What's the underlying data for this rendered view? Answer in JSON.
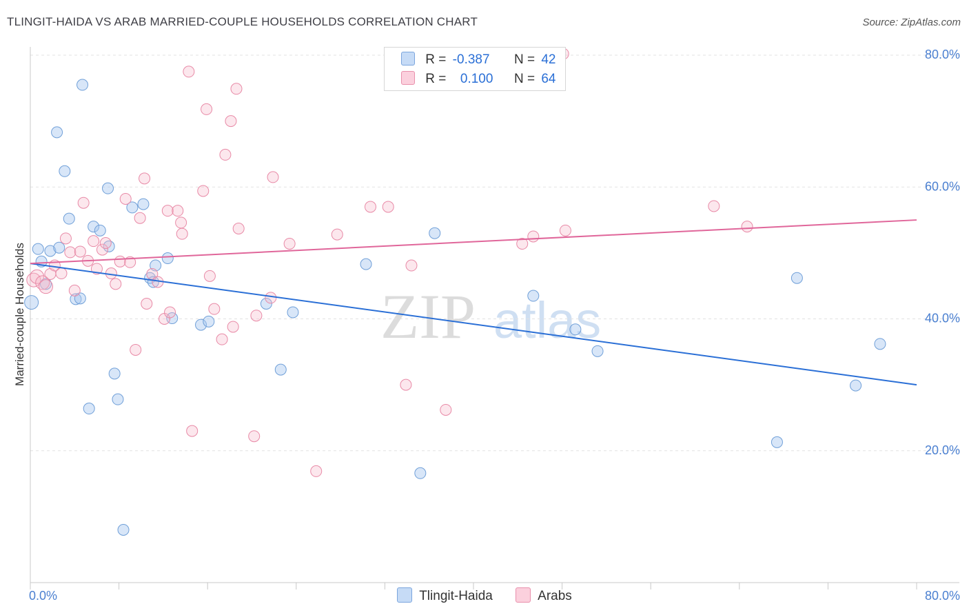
{
  "title": "TLINGIT-HAIDA VS ARAB MARRIED-COUPLE HOUSEHOLDS CORRELATION CHART",
  "source": "Source: ZipAtlas.com",
  "watermark": {
    "zip": "ZIP",
    "atlas": "atlas"
  },
  "legend": {
    "r_label": "R =",
    "n_label": "N =",
    "series": [
      {
        "name": "Tlingit-Haida",
        "r": "-0.387",
        "n": "42",
        "color": "#a8c8f0",
        "edge": "#6f9fd8"
      },
      {
        "name": "Arabs",
        "r": "0.100",
        "n": "64",
        "color": "#f6b9cc",
        "edge": "#e889a6"
      }
    ]
  },
  "chart_data": {
    "type": "scatter",
    "title": "TLINGIT-HAIDA VS ARAB MARRIED-COUPLE HOUSEHOLDS CORRELATION CHART",
    "xlabel": "",
    "ylabel": "Married-couple Households",
    "xlim": [
      0,
      80
    ],
    "ylim": [
      0,
      80
    ],
    "x_tick_labels": [
      "0.0%",
      "80.0%"
    ],
    "y_tick_labels": [
      "20.0%",
      "40.0%",
      "60.0%",
      "80.0%"
    ],
    "y_ticks": [
      20,
      40,
      60,
      80
    ],
    "grid": true,
    "series": [
      {
        "name": "Tlingit-Haida",
        "color": "#a8c8f0",
        "line_color": "#2a6fd6",
        "trend": {
          "x": [
            0,
            80
          ],
          "y": [
            48.4,
            30.0
          ]
        },
        "points": [
          [
            0.1,
            42.5
          ],
          [
            0.7,
            50.6
          ],
          [
            1.0,
            48.7
          ],
          [
            1.4,
            45.3
          ],
          [
            1.8,
            50.3
          ],
          [
            2.4,
            68.3
          ],
          [
            2.6,
            50.8
          ],
          [
            3.1,
            62.4
          ],
          [
            3.5,
            55.2
          ],
          [
            4.1,
            43.0
          ],
          [
            4.5,
            43.1
          ],
          [
            4.7,
            75.5
          ],
          [
            5.3,
            26.4
          ],
          [
            5.7,
            54.0
          ],
          [
            6.3,
            53.4
          ],
          [
            7.0,
            59.8
          ],
          [
            7.1,
            51.0
          ],
          [
            7.6,
            31.7
          ],
          [
            7.9,
            27.8
          ],
          [
            8.4,
            8.0
          ],
          [
            9.2,
            56.9
          ],
          [
            10.2,
            57.4
          ],
          [
            10.8,
            46.2
          ],
          [
            11.1,
            45.6
          ],
          [
            11.3,
            48.1
          ],
          [
            12.4,
            49.2
          ],
          [
            12.8,
            40.1
          ],
          [
            15.4,
            39.1
          ],
          [
            16.1,
            39.6
          ],
          [
            21.3,
            42.3
          ],
          [
            22.6,
            32.3
          ],
          [
            23.7,
            41.0
          ],
          [
            30.3,
            48.3
          ],
          [
            35.2,
            16.6
          ],
          [
            36.5,
            53.0
          ],
          [
            45.4,
            43.5
          ],
          [
            49.2,
            38.4
          ],
          [
            51.2,
            35.1
          ],
          [
            67.4,
            21.3
          ],
          [
            69.2,
            46.2
          ],
          [
            74.5,
            29.9
          ],
          [
            76.7,
            36.2
          ]
        ]
      },
      {
        "name": "Arabs",
        "color": "#f6b9cc",
        "line_color": "#e0669a",
        "trend": {
          "x": [
            0,
            80
          ],
          "y": [
            48.4,
            55.0
          ]
        },
        "points": [
          [
            0.3,
            45.9
          ],
          [
            0.6,
            46.4
          ],
          [
            1.1,
            45.5
          ],
          [
            1.4,
            44.9
          ],
          [
            1.8,
            46.8
          ],
          [
            2.2,
            48.1
          ],
          [
            2.8,
            46.9
          ],
          [
            3.2,
            52.2
          ],
          [
            3.6,
            50.1
          ],
          [
            4.0,
            44.3
          ],
          [
            4.5,
            50.2
          ],
          [
            4.8,
            57.6
          ],
          [
            5.2,
            48.8
          ],
          [
            5.7,
            51.8
          ],
          [
            6.0,
            47.6
          ],
          [
            6.5,
            50.5
          ],
          [
            6.8,
            51.5
          ],
          [
            7.3,
            46.9
          ],
          [
            7.7,
            45.3
          ],
          [
            8.1,
            48.7
          ],
          [
            8.6,
            58.2
          ],
          [
            9.0,
            48.6
          ],
          [
            9.5,
            35.3
          ],
          [
            9.9,
            55.3
          ],
          [
            10.3,
            61.3
          ],
          [
            10.5,
            42.3
          ],
          [
            11.0,
            46.8
          ],
          [
            11.5,
            45.6
          ],
          [
            12.1,
            40.0
          ],
          [
            12.4,
            56.4
          ],
          [
            12.6,
            41.0
          ],
          [
            13.3,
            56.4
          ],
          [
            13.6,
            54.6
          ],
          [
            13.7,
            52.9
          ],
          [
            14.3,
            77.5
          ],
          [
            14.6,
            23.0
          ],
          [
            15.6,
            59.4
          ],
          [
            15.9,
            71.8
          ],
          [
            16.2,
            46.5
          ],
          [
            16.6,
            41.5
          ],
          [
            17.3,
            36.9
          ],
          [
            17.6,
            64.9
          ],
          [
            18.1,
            70.0
          ],
          [
            18.3,
            38.8
          ],
          [
            18.6,
            74.9
          ],
          [
            18.8,
            53.7
          ],
          [
            20.2,
            22.2
          ],
          [
            20.4,
            40.5
          ],
          [
            21.7,
            43.2
          ],
          [
            21.9,
            61.5
          ],
          [
            23.4,
            51.4
          ],
          [
            25.8,
            16.9
          ],
          [
            27.7,
            52.8
          ],
          [
            30.7,
            57.0
          ],
          [
            32.3,
            57.0
          ],
          [
            33.9,
            30.0
          ],
          [
            34.4,
            48.1
          ],
          [
            37.5,
            26.2
          ],
          [
            44.4,
            51.4
          ],
          [
            45.4,
            52.5
          ],
          [
            48.1,
            80.2
          ],
          [
            48.3,
            53.4
          ],
          [
            61.7,
            57.1
          ],
          [
            64.7,
            54.0
          ]
        ]
      }
    ]
  }
}
